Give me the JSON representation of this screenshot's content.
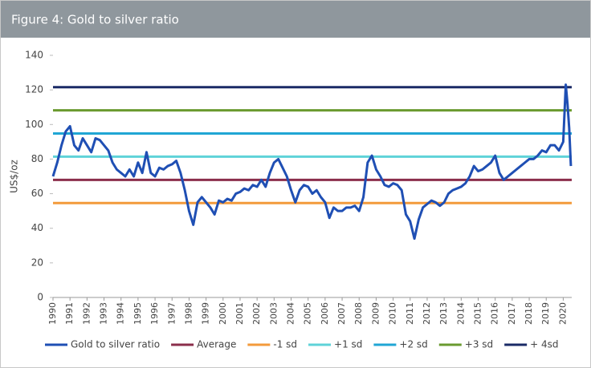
{
  "chart_data": {
    "type": "line",
    "title": "Figure 4: Gold to silver ratio",
    "y_label": "US$/oz",
    "xlim": [
      1990,
      2020.5
    ],
    "xticks": [
      1990,
      1991,
      1992,
      1993,
      1994,
      1995,
      1996,
      1997,
      1998,
      1999,
      2000,
      2001,
      2002,
      2003,
      2004,
      2005,
      2006,
      2007,
      2008,
      2009,
      2010,
      2011,
      2012,
      2013,
      2014,
      2015,
      2016,
      2017,
      2018,
      2019,
      2020
    ],
    "ylim": [
      0,
      140
    ],
    "yticks": [
      0,
      20,
      40,
      60,
      80,
      100,
      120,
      140
    ],
    "series": [
      {
        "name": "Gold to silver ratio",
        "color": "#1f4fb4",
        "x": [
          1990.0,
          1990.25,
          1990.5,
          1990.75,
          1991.0,
          1991.25,
          1991.5,
          1991.75,
          1992.0,
          1992.25,
          1992.5,
          1992.75,
          1993.0,
          1993.25,
          1993.5,
          1993.75,
          1994.0,
          1994.25,
          1994.5,
          1994.75,
          1995.0,
          1995.25,
          1995.5,
          1995.75,
          1996.0,
          1996.25,
          1996.5,
          1996.75,
          1997.0,
          1997.25,
          1997.5,
          1997.75,
          1998.0,
          1998.25,
          1998.5,
          1998.75,
          1999.0,
          1999.25,
          1999.5,
          1999.75,
          2000.0,
          2000.25,
          2000.5,
          2000.75,
          2001.0,
          2001.25,
          2001.5,
          2001.75,
          2002.0,
          2002.25,
          2002.5,
          2002.75,
          2003.0,
          2003.25,
          2003.5,
          2003.75,
          2004.0,
          2004.25,
          2004.5,
          2004.75,
          2005.0,
          2005.25,
          2005.5,
          2005.75,
          2006.0,
          2006.25,
          2006.5,
          2006.75,
          2007.0,
          2007.25,
          2007.5,
          2007.75,
          2008.0,
          2008.25,
          2008.5,
          2008.75,
          2009.0,
          2009.25,
          2009.5,
          2009.75,
          2010.0,
          2010.25,
          2010.5,
          2010.75,
          2011.0,
          2011.25,
          2011.5,
          2011.75,
          2012.0,
          2012.25,
          2012.5,
          2012.75,
          2013.0,
          2013.25,
          2013.5,
          2013.75,
          2014.0,
          2014.25,
          2014.5,
          2014.75,
          2015.0,
          2015.25,
          2015.5,
          2015.75,
          2016.0,
          2016.25,
          2016.5,
          2016.75,
          2017.0,
          2017.25,
          2017.5,
          2017.75,
          2018.0,
          2018.25,
          2018.5,
          2018.75,
          2019.0,
          2019.25,
          2019.5,
          2019.75,
          2020.0,
          2020.15,
          2020.25,
          2020.35,
          2020.45
        ],
        "values": [
          70,
          78,
          88,
          96,
          99,
          88,
          85,
          92,
          88,
          84,
          92,
          91,
          88,
          85,
          78,
          74,
          72,
          70,
          74,
          70,
          78,
          72,
          84,
          72,
          70,
          75,
          74,
          76,
          77,
          79,
          72,
          62,
          50,
          42,
          55,
          58,
          55,
          52,
          48,
          56,
          55,
          57,
          56,
          60,
          61,
          63,
          62,
          65,
          64,
          68,
          64,
          72,
          78,
          80,
          75,
          70,
          62,
          55,
          62,
          65,
          64,
          60,
          62,
          58,
          55,
          46,
          52,
          50,
          50,
          52,
          52,
          53,
          50,
          58,
          78,
          82,
          74,
          70,
          65,
          64,
          66,
          65,
          62,
          48,
          44,
          34,
          45,
          52,
          54,
          56,
          55,
          53,
          55,
          60,
          62,
          63,
          64,
          66,
          70,
          76,
          73,
          74,
          76,
          78,
          82,
          72,
          68,
          70,
          72,
          74,
          76,
          78,
          80,
          80,
          82,
          85,
          84,
          88,
          88,
          85,
          90,
          123,
          112,
          98,
          76
        ]
      }
    ],
    "reference_lines": [
      {
        "name": "Average",
        "color": "#8b2e4b",
        "value": 68
      },
      {
        "name": "-1 sd",
        "color": "#f39a3b",
        "value": 54.6
      },
      {
        "name": "+1 sd",
        "color": "#5fd3d8",
        "value": 81.4
      },
      {
        "name": "+2 sd",
        "color": "#20a6d4",
        "value": 94.8
      },
      {
        "name": "+3 sd",
        "color": "#6a9a2f",
        "value": 108.2
      },
      {
        "name": "+ 4sd",
        "color": "#1a2a66",
        "value": 121.6
      }
    ]
  }
}
